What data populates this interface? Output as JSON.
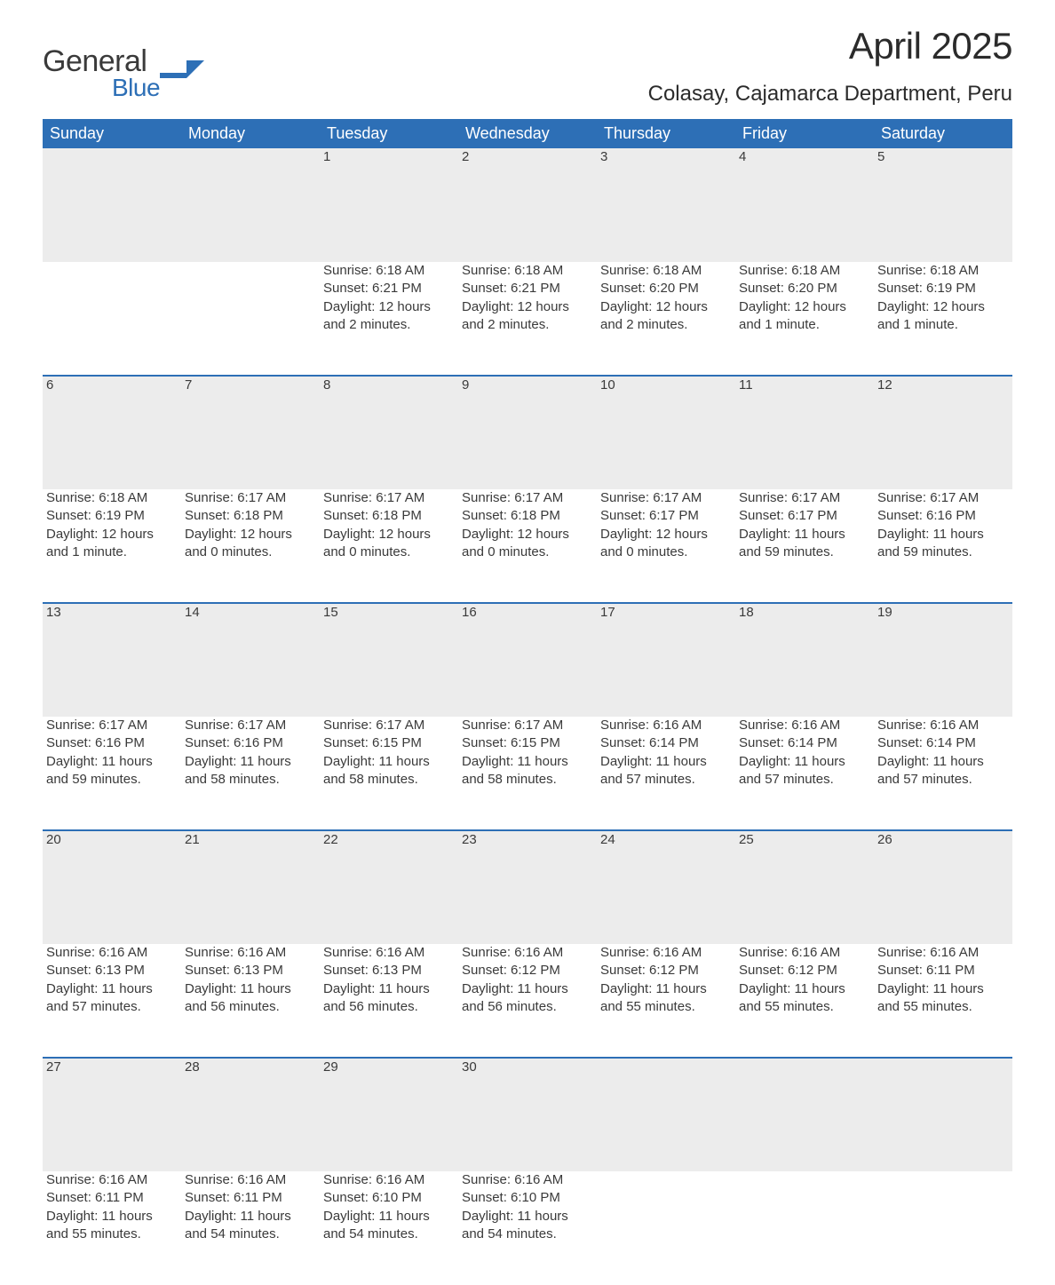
{
  "logo": {
    "word1": "General",
    "word2": "Blue",
    "flag_color": "#2d6fb6"
  },
  "title": {
    "month_year": "April 2025",
    "location": "Colasay, Cajamarca Department, Peru"
  },
  "colors": {
    "header_bg": "#2d6fb6",
    "header_fg": "#ffffff",
    "daybar_bg": "#ececec",
    "daybar_border": "#2d6fb6",
    "text": "#3a3a3a",
    "page_bg": "#ffffff"
  },
  "weekdays": [
    "Sunday",
    "Monday",
    "Tuesday",
    "Wednesday",
    "Thursday",
    "Friday",
    "Saturday"
  ],
  "weeks": [
    [
      null,
      null,
      {
        "n": "1",
        "sr": "Sunrise: 6:18 AM",
        "ss": "Sunset: 6:21 PM",
        "d1": "Daylight: 12 hours",
        "d2": "and 2 minutes."
      },
      {
        "n": "2",
        "sr": "Sunrise: 6:18 AM",
        "ss": "Sunset: 6:21 PM",
        "d1": "Daylight: 12 hours",
        "d2": "and 2 minutes."
      },
      {
        "n": "3",
        "sr": "Sunrise: 6:18 AM",
        "ss": "Sunset: 6:20 PM",
        "d1": "Daylight: 12 hours",
        "d2": "and 2 minutes."
      },
      {
        "n": "4",
        "sr": "Sunrise: 6:18 AM",
        "ss": "Sunset: 6:20 PM",
        "d1": "Daylight: 12 hours",
        "d2": "and 1 minute."
      },
      {
        "n": "5",
        "sr": "Sunrise: 6:18 AM",
        "ss": "Sunset: 6:19 PM",
        "d1": "Daylight: 12 hours",
        "d2": "and 1 minute."
      }
    ],
    [
      {
        "n": "6",
        "sr": "Sunrise: 6:18 AM",
        "ss": "Sunset: 6:19 PM",
        "d1": "Daylight: 12 hours",
        "d2": "and 1 minute."
      },
      {
        "n": "7",
        "sr": "Sunrise: 6:17 AM",
        "ss": "Sunset: 6:18 PM",
        "d1": "Daylight: 12 hours",
        "d2": "and 0 minutes."
      },
      {
        "n": "8",
        "sr": "Sunrise: 6:17 AM",
        "ss": "Sunset: 6:18 PM",
        "d1": "Daylight: 12 hours",
        "d2": "and 0 minutes."
      },
      {
        "n": "9",
        "sr": "Sunrise: 6:17 AM",
        "ss": "Sunset: 6:18 PM",
        "d1": "Daylight: 12 hours",
        "d2": "and 0 minutes."
      },
      {
        "n": "10",
        "sr": "Sunrise: 6:17 AM",
        "ss": "Sunset: 6:17 PM",
        "d1": "Daylight: 12 hours",
        "d2": "and 0 minutes."
      },
      {
        "n": "11",
        "sr": "Sunrise: 6:17 AM",
        "ss": "Sunset: 6:17 PM",
        "d1": "Daylight: 11 hours",
        "d2": "and 59 minutes."
      },
      {
        "n": "12",
        "sr": "Sunrise: 6:17 AM",
        "ss": "Sunset: 6:16 PM",
        "d1": "Daylight: 11 hours",
        "d2": "and 59 minutes."
      }
    ],
    [
      {
        "n": "13",
        "sr": "Sunrise: 6:17 AM",
        "ss": "Sunset: 6:16 PM",
        "d1": "Daylight: 11 hours",
        "d2": "and 59 minutes."
      },
      {
        "n": "14",
        "sr": "Sunrise: 6:17 AM",
        "ss": "Sunset: 6:16 PM",
        "d1": "Daylight: 11 hours",
        "d2": "and 58 minutes."
      },
      {
        "n": "15",
        "sr": "Sunrise: 6:17 AM",
        "ss": "Sunset: 6:15 PM",
        "d1": "Daylight: 11 hours",
        "d2": "and 58 minutes."
      },
      {
        "n": "16",
        "sr": "Sunrise: 6:17 AM",
        "ss": "Sunset: 6:15 PM",
        "d1": "Daylight: 11 hours",
        "d2": "and 58 minutes."
      },
      {
        "n": "17",
        "sr": "Sunrise: 6:16 AM",
        "ss": "Sunset: 6:14 PM",
        "d1": "Daylight: 11 hours",
        "d2": "and 57 minutes."
      },
      {
        "n": "18",
        "sr": "Sunrise: 6:16 AM",
        "ss": "Sunset: 6:14 PM",
        "d1": "Daylight: 11 hours",
        "d2": "and 57 minutes."
      },
      {
        "n": "19",
        "sr": "Sunrise: 6:16 AM",
        "ss": "Sunset: 6:14 PM",
        "d1": "Daylight: 11 hours",
        "d2": "and 57 minutes."
      }
    ],
    [
      {
        "n": "20",
        "sr": "Sunrise: 6:16 AM",
        "ss": "Sunset: 6:13 PM",
        "d1": "Daylight: 11 hours",
        "d2": "and 57 minutes."
      },
      {
        "n": "21",
        "sr": "Sunrise: 6:16 AM",
        "ss": "Sunset: 6:13 PM",
        "d1": "Daylight: 11 hours",
        "d2": "and 56 minutes."
      },
      {
        "n": "22",
        "sr": "Sunrise: 6:16 AM",
        "ss": "Sunset: 6:13 PM",
        "d1": "Daylight: 11 hours",
        "d2": "and 56 minutes."
      },
      {
        "n": "23",
        "sr": "Sunrise: 6:16 AM",
        "ss": "Sunset: 6:12 PM",
        "d1": "Daylight: 11 hours",
        "d2": "and 56 minutes."
      },
      {
        "n": "24",
        "sr": "Sunrise: 6:16 AM",
        "ss": "Sunset: 6:12 PM",
        "d1": "Daylight: 11 hours",
        "d2": "and 55 minutes."
      },
      {
        "n": "25",
        "sr": "Sunrise: 6:16 AM",
        "ss": "Sunset: 6:12 PM",
        "d1": "Daylight: 11 hours",
        "d2": "and 55 minutes."
      },
      {
        "n": "26",
        "sr": "Sunrise: 6:16 AM",
        "ss": "Sunset: 6:11 PM",
        "d1": "Daylight: 11 hours",
        "d2": "and 55 minutes."
      }
    ],
    [
      {
        "n": "27",
        "sr": "Sunrise: 6:16 AM",
        "ss": "Sunset: 6:11 PM",
        "d1": "Daylight: 11 hours",
        "d2": "and 55 minutes."
      },
      {
        "n": "28",
        "sr": "Sunrise: 6:16 AM",
        "ss": "Sunset: 6:11 PM",
        "d1": "Daylight: 11 hours",
        "d2": "and 54 minutes."
      },
      {
        "n": "29",
        "sr": "Sunrise: 6:16 AM",
        "ss": "Sunset: 6:10 PM",
        "d1": "Daylight: 11 hours",
        "d2": "and 54 minutes."
      },
      {
        "n": "30",
        "sr": "Sunrise: 6:16 AM",
        "ss": "Sunset: 6:10 PM",
        "d1": "Daylight: 11 hours",
        "d2": "and 54 minutes."
      },
      null,
      null,
      null
    ]
  ]
}
